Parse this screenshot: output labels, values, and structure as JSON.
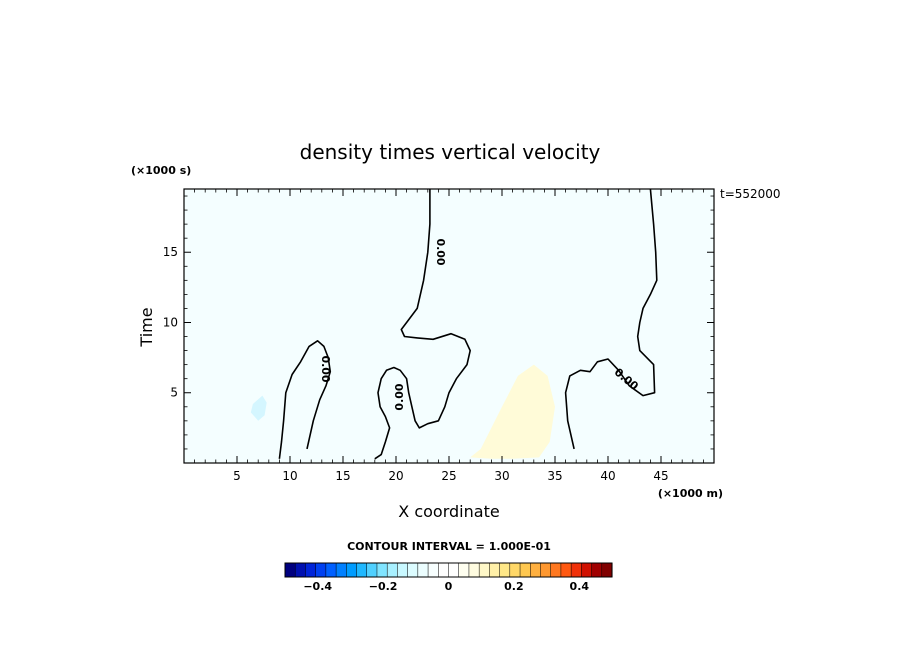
{
  "chart_data": {
    "type": "heatmap",
    "title": "density times vertical velocity",
    "xlabel": "X coordinate",
    "ylabel": "Time",
    "x_units": "(×1000 m)",
    "y_units": "(×1000 s)",
    "timestamp": "t=552000",
    "xlim": [
      0,
      50
    ],
    "ylim": [
      0,
      19.5
    ],
    "x_ticks": [
      5,
      10,
      15,
      20,
      25,
      30,
      35,
      40,
      45
    ],
    "y_ticks": [
      5,
      10,
      15
    ],
    "contour_interval_label": "CONTOUR INTERVAL = 1.000E-01",
    "contour_level_label": "0.00",
    "colorbar": {
      "min": -0.5,
      "max": 0.5,
      "tick_values": [
        -0.4,
        -0.2,
        0,
        0.2,
        0.4
      ],
      "tick_labels": [
        "−0.4",
        "−0.2",
        "0",
        "0.2",
        "0.4"
      ],
      "colors": [
        "#00007f",
        "#0010b0",
        "#0024d8",
        "#0040f0",
        "#0060ff",
        "#0080ff",
        "#009cff",
        "#20b8ff",
        "#50d0ff",
        "#80e4ff",
        "#a8f0ff",
        "#c8f8ff",
        "#dcfcff",
        "#ecfeff",
        "#f8ffff",
        "#ffffff",
        "#ffffff",
        "#fffff0",
        "#fffce0",
        "#fff8c8",
        "#fff0a8",
        "#ffe888",
        "#ffd868",
        "#ffc850",
        "#ffb040",
        "#ff9830",
        "#ff7820",
        "#ff5810",
        "#f03008",
        "#d01000",
        "#a00000",
        "#800000"
      ]
    },
    "zero_contour_1": {
      "x": [
        23.2,
        23.2,
        23.0,
        22.6,
        22.0,
        21.0,
        20.5,
        20.8,
        22.0,
        23.5,
        25.2,
        26.5,
        27.0,
        26.7,
        25.7,
        25.0,
        24.6,
        24.0,
        23.0,
        22.2,
        21.8,
        21.5,
        21.2,
        21.0,
        20.4,
        19.8,
        19.1,
        18.6,
        18.3,
        18.5,
        19.0,
        19.4,
        19.0,
        18.6,
        18.0
      ],
      "y": [
        19.5,
        17.0,
        15.0,
        13.0,
        11.0,
        10.0,
        9.5,
        9.0,
        8.9,
        8.8,
        9.2,
        8.8,
        8.0,
        7.0,
        6.0,
        5.0,
        4.0,
        3.0,
        2.8,
        2.5,
        3.0,
        4.0,
        5.0,
        6.0,
        6.6,
        6.8,
        6.6,
        6.0,
        5.0,
        4.0,
        3.3,
        2.5,
        1.5,
        0.6,
        0.3
      ]
    },
    "zero_contour_2": {
      "x": [
        44.0,
        44.3,
        44.5,
        44.6,
        44.0,
        43.3,
        43.0,
        42.8,
        43.0,
        44.3,
        44.4,
        43.3,
        42.0,
        41.0,
        40.0,
        39.0,
        38.3,
        37.4,
        36.4,
        36.0,
        36.2,
        36.8
      ],
      "y": [
        19.5,
        17.0,
        15.0,
        13.0,
        12.0,
        11.0,
        10.0,
        9.0,
        8.0,
        7.0,
        5.0,
        4.8,
        5.5,
        6.6,
        7.4,
        7.2,
        6.5,
        6.6,
        6.2,
        5.0,
        3.0,
        1.0
      ]
    },
    "zero_contour_3": {
      "x": [
        9.0,
        9.2,
        9.4,
        9.6,
        10.2,
        11.0,
        11.8,
        12.6,
        13.2,
        13.6,
        13.8,
        13.4,
        12.8,
        12.2,
        11.6
      ],
      "y": [
        0.3,
        1.5,
        3.0,
        5.0,
        6.3,
        7.2,
        8.3,
        8.7,
        8.3,
        7.5,
        6.5,
        5.5,
        4.5,
        3.0,
        1.0
      ]
    },
    "weak_positive_region": {
      "x": [
        28.0,
        30.0,
        31.5,
        33.0,
        34.3,
        35.0,
        34.5,
        33.5,
        31.0,
        29.0,
        27.0
      ],
      "y": [
        1.0,
        4.0,
        6.2,
        7.0,
        6.2,
        4.0,
        1.5,
        0.4,
        0.3,
        0.3,
        0.4
      ]
    },
    "weak_negative_region": {
      "x": [
        6.5,
        7.4,
        7.8,
        7.6,
        7.0,
        6.3
      ],
      "y": [
        4.2,
        4.8,
        4.3,
        3.4,
        3.0,
        3.6
      ]
    }
  }
}
